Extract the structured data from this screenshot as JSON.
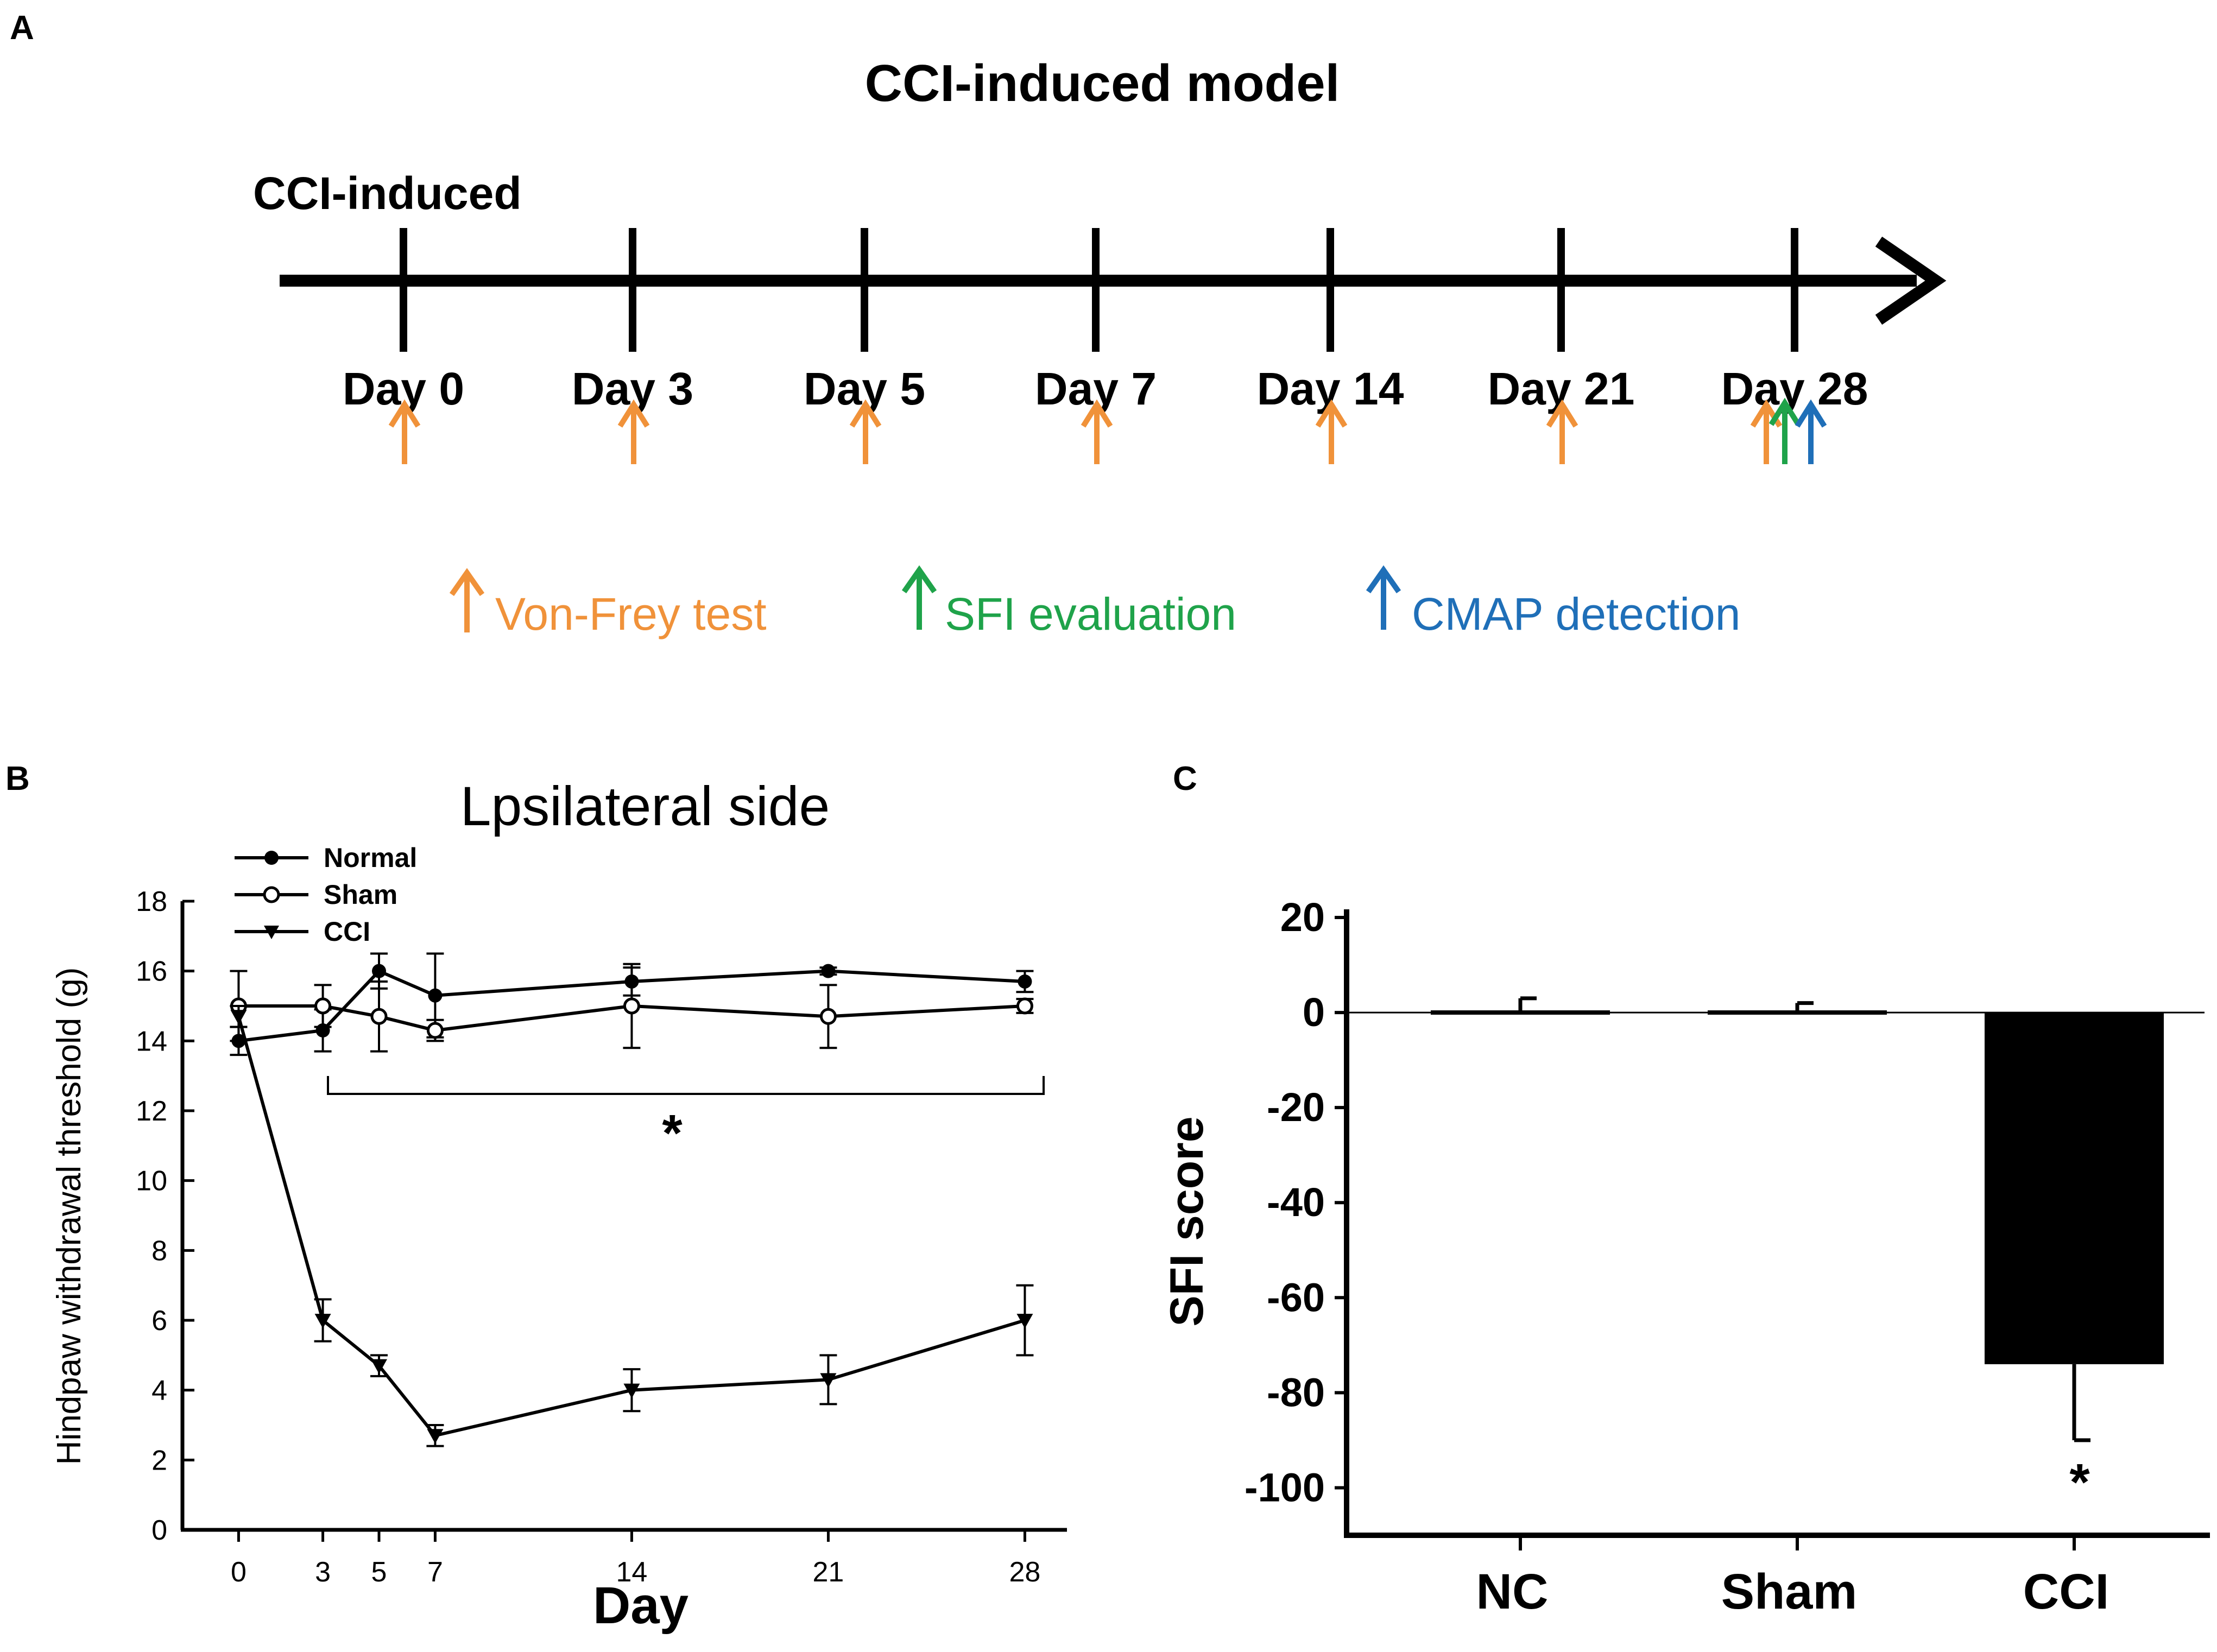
{
  "panel_a": {
    "letter": "A",
    "title": "CCI-induced model",
    "start_label": "CCI-induced",
    "days": [
      "Day 0",
      "Day 3",
      "Day 5",
      "Day 7",
      "Day 14",
      "Day 21",
      "Day 28"
    ],
    "legend": [
      {
        "label": "Von-Frey test",
        "color": "#F0923A"
      },
      {
        "label": "SFI evaluation",
        "color": "#1FA34A"
      },
      {
        "label": "CMAP detection",
        "color": "#1F6FB8"
      }
    ]
  },
  "panel_b": {
    "letter": "B"
  },
  "panel_c": {
    "letter": "C"
  },
  "chart_data": [
    {
      "type": "line",
      "title": "Lpsilateral side",
      "xlabel": "Day",
      "ylabel": "Hindpaw withdrawal threshold (g)",
      "x": [
        0,
        3,
        5,
        7,
        14,
        21,
        28
      ],
      "xticks": [
        "0",
        "3",
        "5",
        "7",
        "14",
        "21",
        "28"
      ],
      "xlim": [
        -2,
        29.5
      ],
      "ylim": [
        0,
        18
      ],
      "yticks": [
        "0",
        "2",
        "4",
        "6",
        "8",
        "10",
        "12",
        "14",
        "16",
        "18"
      ],
      "series": [
        {
          "name": "Normal",
          "marker": "filled-circle",
          "values": [
            14,
            14.3,
            16,
            15.3,
            15.7,
            16,
            15.7
          ],
          "errors": [
            0.4,
            0.6,
            0.5,
            1.2,
            0.4,
            0.1,
            0.3
          ]
        },
        {
          "name": "Sham",
          "marker": "open-circle",
          "values": [
            15,
            15,
            14.7,
            14.3,
            15,
            14.7,
            15
          ],
          "errors": [
            1.0,
            0.6,
            1.0,
            0.3,
            1.2,
            0.9,
            0.2
          ]
        },
        {
          "name": "CCI",
          "marker": "filled-triangle-down",
          "values": [
            14.7,
            6,
            4.7,
            2.7,
            4,
            4.3,
            6
          ],
          "errors": [
            0.3,
            0.6,
            0.3,
            0.3,
            0.6,
            0.7,
            1.0
          ]
        }
      ],
      "annotation": "*",
      "legend_position": "top-left"
    },
    {
      "type": "bar",
      "ylabel": "SFI score",
      "categories": [
        "NC",
        "Sham",
        "CCI"
      ],
      "values": [
        0,
        0,
        -74
      ],
      "errors": [
        3,
        2,
        16
      ],
      "ylim": [
        -110,
        20
      ],
      "yticks": [
        "20",
        "0",
        "-20",
        "-40",
        "-60",
        "-80",
        "-100"
      ],
      "annotation": "*"
    }
  ]
}
